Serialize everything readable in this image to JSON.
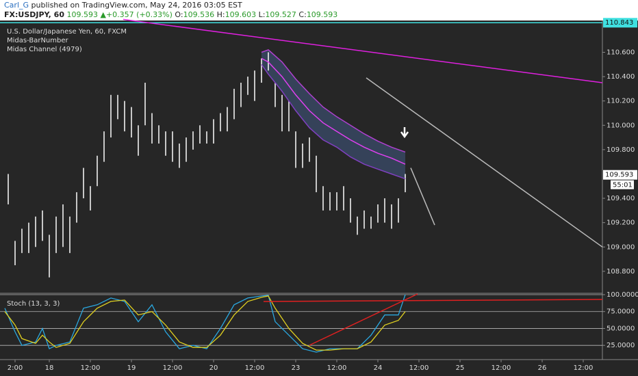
{
  "header": {
    "author": "Carl_G",
    "published": "published on TradingView.com, May 24, 2016 03:05 EST",
    "symbol": "FX:USDJPY, 60",
    "price": "109.593",
    "arrow": "▲",
    "change": "+0.357 (+0.33%)",
    "ohlc": [
      "O:",
      "109.536",
      "H:",
      "109.603",
      "L:",
      "109.527",
      "C:",
      "109.593"
    ]
  },
  "chart_data": [
    {
      "type": "range",
      "title": "U.S. Dollar/Japanese Yen, 60, FXCM",
      "indicators": [
        "Midas-BarNumber",
        "Midas Channel (4979)"
      ],
      "color": "#ffffff",
      "x": [
        -12,
        -10,
        -8,
        -6,
        -4,
        -2,
        0,
        2,
        4,
        6,
        8,
        10,
        12,
        14,
        16,
        18,
        20,
        22,
        24,
        26,
        28,
        30,
        32,
        34,
        36,
        38,
        40,
        42,
        44,
        46,
        48,
        50,
        52,
        54,
        56,
        58,
        60,
        62,
        64,
        66,
        68,
        70,
        72,
        74,
        76,
        78,
        80,
        82,
        84,
        86,
        88,
        90,
        92,
        94,
        96,
        98,
        100,
        102,
        104
      ],
      "high": [
        109.6,
        109.05,
        109.15,
        109.2,
        109.25,
        109.3,
        109.1,
        109.25,
        109.35,
        109.25,
        109.45,
        109.65,
        109.5,
        109.75,
        109.95,
        110.25,
        110.25,
        110.2,
        110.15,
        110.0,
        110.35,
        110.1,
        110.0,
        109.95,
        109.95,
        109.85,
        109.9,
        109.95,
        110.0,
        109.95,
        110.05,
        110.1,
        110.15,
        110.3,
        110.35,
        110.4,
        110.45,
        110.55,
        110.6,
        110.35,
        110.25,
        110.2,
        109.95,
        109.85,
        109.9,
        109.75,
        109.5,
        109.45,
        109.45,
        109.5,
        109.4,
        109.25,
        109.3,
        109.25,
        109.35,
        109.4,
        109.35,
        109.4,
        109.6
      ],
      "low": [
        109.35,
        108.85,
        108.95,
        108.95,
        109.0,
        109.05,
        108.75,
        108.95,
        109.0,
        108.95,
        109.2,
        109.4,
        109.3,
        109.5,
        109.7,
        109.9,
        110.05,
        109.95,
        109.9,
        109.75,
        110.0,
        109.85,
        109.85,
        109.75,
        109.7,
        109.65,
        109.7,
        109.8,
        109.85,
        109.85,
        109.85,
        109.95,
        109.95,
        110.05,
        110.15,
        110.25,
        110.2,
        110.35,
        110.45,
        110.15,
        109.95,
        109.95,
        109.65,
        109.65,
        109.7,
        109.45,
        109.3,
        109.3,
        109.3,
        109.3,
        109.2,
        109.1,
        109.15,
        109.15,
        109.2,
        109.2,
        109.15,
        109.2,
        109.45
      ],
      "channel": {
        "x": [
          62,
          64,
          68,
          72,
          76,
          80,
          84,
          88,
          92,
          96,
          100,
          104
        ],
        "fill": "#3a4a66",
        "series": [
          {
            "color": "#b040d0",
            "values": [
              110.6,
              110.62,
              110.52,
              110.38,
              110.26,
              110.15,
              110.07,
              110.0,
              109.93,
              109.87,
              109.82,
              109.78
            ]
          },
          {
            "color": "#e040f0",
            "values": [
              110.55,
              110.52,
              110.4,
              110.25,
              110.12,
              110.02,
              109.95,
              109.88,
              109.82,
              109.77,
              109.73,
              109.68
            ]
          },
          {
            "color": "#8040c0",
            "values": [
              110.5,
              110.42,
              110.28,
              110.12,
              109.98,
              109.88,
              109.82,
              109.74,
              109.68,
              109.64,
              109.6,
              109.56
            ]
          }
        ]
      },
      "lines": [
        {
          "x": [
            21.6,
            161.6
          ],
          "values": [
            110.87,
            110.35
          ],
          "color": "#e020e0"
        },
        {
          "x": [
            92.6,
            161.6
          ],
          "values": [
            110.39,
            109.0
          ],
          "color": "#bbbbbb"
        },
        {
          "x": [
            105.6,
            112.6
          ],
          "values": [
            109.65,
            109.18
          ],
          "color": "#bbbbbb"
        }
      ],
      "level": {
        "value": 110.843,
        "label": "110.843",
        "color": "#40e0e0"
      },
      "last": {
        "value": 109.593,
        "label": "109.593"
      },
      "countdown": "55:01",
      "xlim": [
        -13.4,
        161.6
      ],
      "ylim": [
        108.625,
        110.85
      ],
      "yticks": [
        {
          "value": 110.6,
          "label": "110.600"
        },
        {
          "value": 110.4,
          "label": "110.400"
        },
        {
          "value": 110.2,
          "label": "110.200"
        },
        {
          "value": 110.0,
          "label": "110.000"
        },
        {
          "value": 109.8,
          "label": "109.800"
        },
        {
          "value": 109.4,
          "label": "109.400"
        },
        {
          "value": 109.2,
          "label": "109.200"
        },
        {
          "value": 109.0,
          "label": "109.000"
        },
        {
          "value": 108.8,
          "label": "108.800"
        }
      ]
    },
    {
      "type": "line",
      "title": "Stoch (13, 3, 3)",
      "x": [
        -13,
        -10,
        -8,
        -4,
        -2,
        0,
        2,
        6,
        10,
        14,
        18,
        22,
        26,
        30,
        34,
        38,
        42,
        46,
        50,
        54,
        58,
        62,
        64,
        66,
        70,
        74,
        78,
        82,
        86,
        90,
        94,
        98,
        102,
        104
      ],
      "series": [
        {
          "color": "#2aa8e0",
          "values": [
            80,
            45,
            25,
            30,
            50,
            20,
            25,
            30,
            80,
            85,
            95,
            90,
            60,
            85,
            45,
            20,
            25,
            20,
            50,
            85,
            95,
            98,
            99,
            60,
            40,
            20,
            15,
            20,
            20,
            20,
            40,
            70,
            70,
            100
          ]
        },
        {
          "color": "#e0d020",
          "values": [
            75,
            55,
            35,
            28,
            40,
            30,
            22,
            28,
            60,
            80,
            90,
            92,
            70,
            75,
            55,
            30,
            22,
            22,
            40,
            70,
            90,
            96,
            98,
            80,
            50,
            28,
            18,
            18,
            20,
            20,
            30,
            55,
            62,
            75
          ]
        }
      ],
      "lines": [
        {
          "x": [
            62.6,
            161.6
          ],
          "values": [
            89.9,
            92.9
          ],
          "color": "#e02020"
        },
        {
          "x": [
            76,
            107.6
          ],
          "values": [
            25.2,
            101
          ],
          "color": "#e02020"
        }
      ],
      "xlim": [
        -13.4,
        161.6
      ],
      "ylim": [
        8,
        101
      ],
      "yticks": [
        {
          "value": 100,
          "label": "100.0000"
        },
        {
          "value": 75,
          "label": "75.0000"
        },
        {
          "value": 50,
          "label": "50.0000"
        },
        {
          "value": 25,
          "label": "25.0000"
        }
      ],
      "xticks": [
        {
          "value": -10,
          "label": "2:00"
        },
        {
          "value": 0,
          "label": "18"
        },
        {
          "value": 12,
          "label": "12:00"
        },
        {
          "value": 24,
          "label": "19"
        },
        {
          "value": 36,
          "label": "12:00"
        },
        {
          "value": 48,
          "label": "20"
        },
        {
          "value": 60,
          "label": "12:00"
        },
        {
          "value": 72,
          "label": "23"
        },
        {
          "value": 84,
          "label": "12:00"
        },
        {
          "value": 96,
          "label": "24"
        },
        {
          "value": 108,
          "label": "12:00"
        },
        {
          "value": 120,
          "label": "25"
        },
        {
          "value": 132,
          "label": "12:00"
        },
        {
          "value": 144,
          "label": "26"
        },
        {
          "value": 156,
          "label": "12:00"
        }
      ]
    }
  ]
}
